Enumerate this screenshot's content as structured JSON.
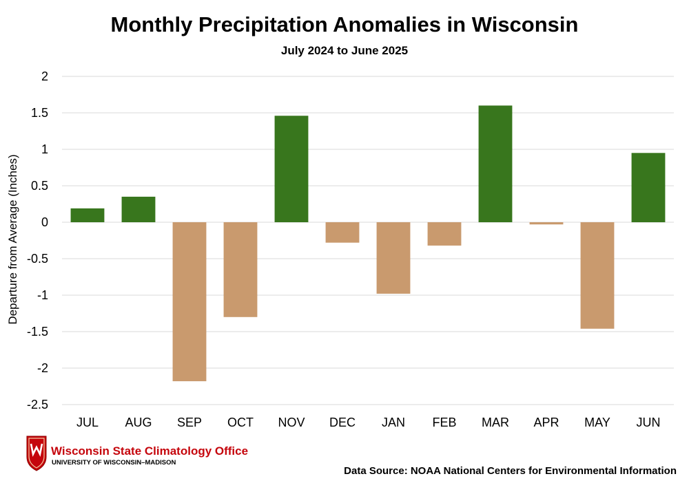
{
  "chart_data": {
    "type": "bar",
    "title": "Monthly Precipitation Anomalies in Wisconsin",
    "subtitle": "July 2024 to June 2025",
    "xlabel": "",
    "ylabel": "Departure from Average (Inches)",
    "categories": [
      "JUL",
      "AUG",
      "SEP",
      "OCT",
      "NOV",
      "DEC",
      "JAN",
      "FEB",
      "MAR",
      "APR",
      "MAY",
      "JUN"
    ],
    "values": [
      0.19,
      0.35,
      -2.18,
      -1.3,
      1.46,
      -0.28,
      -0.98,
      -0.32,
      1.6,
      -0.03,
      -1.46,
      0.95
    ],
    "ylim": [
      -2.5,
      2
    ],
    "yticks": [
      2,
      1.5,
      1,
      0.5,
      0,
      -0.5,
      -1,
      -1.5,
      -2,
      -2.5
    ],
    "ytick_labels": [
      "2",
      "1.5",
      "1",
      "0.5",
      "0",
      "-0.5",
      "-1",
      "-1.5",
      "-2",
      "-2.5"
    ],
    "grid": true,
    "colors": {
      "positive": "#38761d",
      "negative": "#c99a6e"
    }
  },
  "source_note": "Data Source: NOAA National Centers for Environmental Information",
  "logo": {
    "name": "Wisconsin State Climatology Office",
    "subname": "UNIVERSITY OF WISCONSIN–MADISON",
    "icon": "uw-crest-icon",
    "accent": "#c5050c"
  }
}
